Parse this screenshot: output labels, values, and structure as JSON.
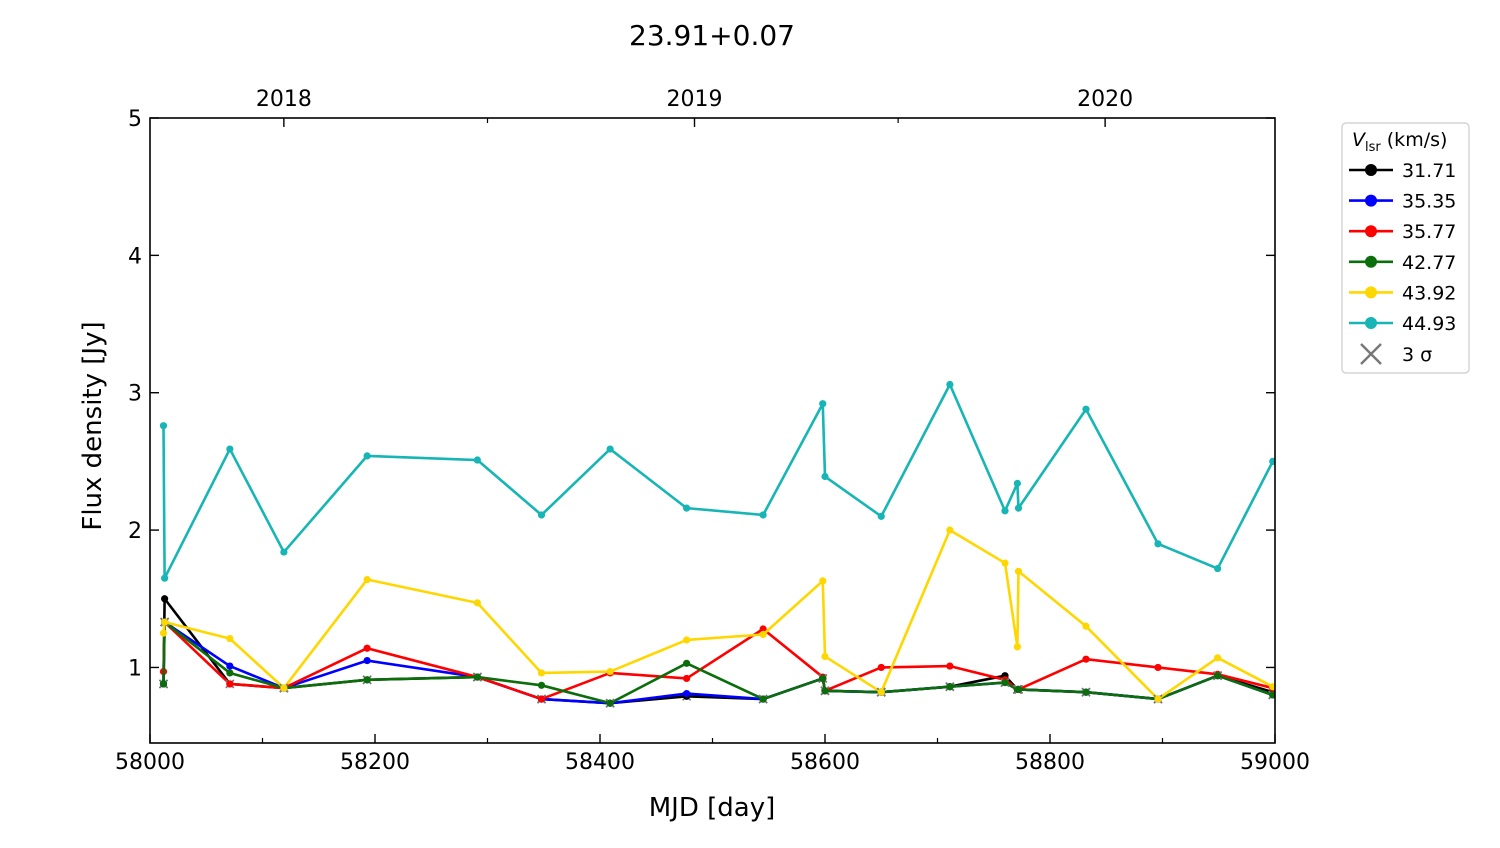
{
  "chart_data": {
    "type": "line",
    "title": "23.91+0.07",
    "xlabel": "MJD [day]",
    "ylabel": "Flux density [Jy]",
    "xlim": [
      58000,
      59000
    ],
    "ylim": [
      0.45,
      5
    ],
    "xticks": [
      58000,
      58200,
      58400,
      58600,
      58800,
      59000
    ],
    "xtick_labels": [
      "58000",
      "58200",
      "58400",
      "58600",
      "58800",
      "59000"
    ],
    "yticks": [
      1,
      2,
      3,
      4,
      5
    ],
    "ytick_labels": [
      "1",
      "2",
      "3",
      "4",
      "5"
    ],
    "top_axis": {
      "ticks": [
        58119,
        58484,
        58849
      ],
      "labels": [
        "2018",
        "2019",
        "2020"
      ],
      "minor": [
        58300,
        58665
      ]
    },
    "grid": false,
    "legend": {
      "title_main": "V",
      "title_sub": "lsr",
      "title_unit": " (km/s)",
      "placement": "outside-right",
      "sigma_label": "3 σ"
    },
    "x": [
      58012,
      58013,
      58071,
      58119,
      58193,
      58291,
      58348,
      58409,
      58477,
      58545,
      58598,
      58600,
      58650,
      58711,
      58760,
      58771,
      58772,
      58832,
      58896,
      58949,
      58998
    ],
    "series": [
      {
        "name": "31.71",
        "color": "#000000",
        "values": [
          0.88,
          1.5,
          0.88,
          0.85,
          0.91,
          0.93,
          0.77,
          0.74,
          0.79,
          0.77,
          0.92,
          0.83,
          0.82,
          0.86,
          0.94,
          0.84,
          0.84,
          0.82,
          0.77,
          0.94,
          0.82
        ],
        "limits": [
          0,
          3,
          4,
          5,
          6,
          7,
          8,
          9,
          10,
          11,
          12,
          13,
          15,
          16,
          17,
          18,
          19
        ]
      },
      {
        "name": "35.35",
        "color": "#0000ff",
        "values": [
          0.88,
          1.33,
          1.01,
          0.85,
          1.05,
          0.93,
          0.77,
          0.74,
          0.81,
          0.77,
          0.92,
          0.83,
          0.82,
          0.86,
          0.89,
          0.84,
          0.84,
          0.82,
          0.77,
          0.94,
          0.8
        ],
        "limits": [
          0,
          1,
          3,
          5,
          6,
          7,
          9,
          10,
          11,
          12,
          13,
          14,
          15,
          16,
          17,
          18,
          19,
          20
        ]
      },
      {
        "name": "35.77",
        "color": "#ff0000",
        "values": [
          0.97,
          1.33,
          0.88,
          0.85,
          1.14,
          0.93,
          0.77,
          0.96,
          0.92,
          1.28,
          0.93,
          0.83,
          1.0,
          1.01,
          0.91,
          0.84,
          0.84,
          1.06,
          1.0,
          0.95,
          0.85
        ],
        "limits": [
          1,
          2,
          3,
          5,
          6
        ]
      },
      {
        "name": "42.77",
        "color": "#0b6e0b",
        "values": [
          0.88,
          1.33,
          0.96,
          0.85,
          0.91,
          0.93,
          0.87,
          0.74,
          1.03,
          0.77,
          0.92,
          0.83,
          0.82,
          0.86,
          0.89,
          0.84,
          0.84,
          0.82,
          0.77,
          0.94,
          0.8
        ],
        "limits": [
          0,
          1,
          3,
          4,
          5,
          7,
          9,
          10,
          11,
          12,
          13,
          14,
          15,
          16,
          17,
          18,
          19,
          20
        ]
      },
      {
        "name": "43.92",
        "color": "#ffd700",
        "values": [
          1.25,
          1.33,
          1.21,
          0.85,
          1.64,
          1.47,
          0.96,
          0.97,
          1.2,
          1.24,
          1.63,
          1.08,
          0.82,
          2.0,
          1.76,
          1.15,
          1.7,
          1.3,
          0.77,
          1.07,
          0.86
        ],
        "limits": [
          3,
          12,
          18
        ]
      },
      {
        "name": "44.93",
        "color": "#17b5b5",
        "values": [
          2.76,
          1.65,
          2.59,
          1.84,
          2.54,
          2.51,
          2.11,
          2.59,
          2.16,
          2.11,
          2.92,
          2.39,
          2.1,
          3.06,
          2.14,
          2.34,
          2.16,
          2.88,
          1.9,
          1.72,
          2.5
        ],
        "limits": []
      }
    ]
  }
}
